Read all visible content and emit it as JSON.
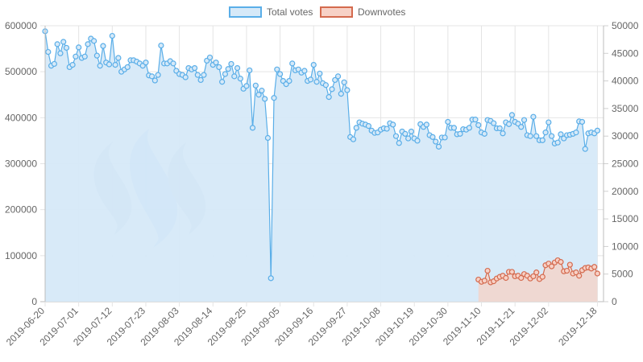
{
  "legend": [
    {
      "label": "Total votes",
      "fill": "#d6e9f8",
      "stroke": "#5aaee8"
    },
    {
      "label": "Downvotes",
      "fill": "#f7d1c6",
      "stroke": "#d46a4e"
    }
  ],
  "chart_data": {
    "type": "line",
    "title": "",
    "x_start": "2019-06-20",
    "x_end": "2019-12-20",
    "x_ticks": [
      "2019-06-20",
      "2019-07-01",
      "2019-07-12",
      "2019-07-23",
      "2019-08-03",
      "2019-08-14",
      "2019-08-25",
      "2019-09-05",
      "2019-09-16",
      "2019-09-27",
      "2019-10-08",
      "2019-10-19",
      "2019-10-30",
      "2019-11-10",
      "2019-11-21",
      "2019-12-02",
      "2019-12-18"
    ],
    "y_left": {
      "min": 0,
      "max": 600000,
      "ticks": [
        0,
        100000,
        200000,
        300000,
        400000,
        500000,
        600000
      ]
    },
    "y_right": {
      "min": 0,
      "max": 50000,
      "ticks": [
        0,
        5000,
        10000,
        15000,
        20000,
        25000,
        30000,
        35000,
        40000,
        45000,
        50000
      ]
    },
    "grid": true,
    "legend_position": "top",
    "series": [
      {
        "name": "Total votes",
        "axis": "left",
        "color": "#5aaee8",
        "fill": "#d6e9f8",
        "points": [
          [
            "2019-06-20",
            588000
          ],
          [
            "2019-06-21",
            543000
          ],
          [
            "2019-06-22",
            513000
          ],
          [
            "2019-06-23",
            517000
          ],
          [
            "2019-06-24",
            560000
          ],
          [
            "2019-06-25",
            540000
          ],
          [
            "2019-06-26",
            565000
          ],
          [
            "2019-06-27",
            552000
          ],
          [
            "2019-06-28",
            510000
          ],
          [
            "2019-06-29",
            515000
          ],
          [
            "2019-06-30",
            533000
          ],
          [
            "2019-07-01",
            553000
          ],
          [
            "2019-07-02",
            530000
          ],
          [
            "2019-07-03",
            533000
          ],
          [
            "2019-07-04",
            560000
          ],
          [
            "2019-07-05",
            572000
          ],
          [
            "2019-07-06",
            567000
          ],
          [
            "2019-07-07",
            535000
          ],
          [
            "2019-07-08",
            513000
          ],
          [
            "2019-07-09",
            556000
          ],
          [
            "2019-07-10",
            520000
          ],
          [
            "2019-07-11",
            516000
          ],
          [
            "2019-07-12",
            578000
          ],
          [
            "2019-07-13",
            515000
          ],
          [
            "2019-07-14",
            530000
          ],
          [
            "2019-07-15",
            500000
          ],
          [
            "2019-07-16",
            505000
          ],
          [
            "2019-07-17",
            510000
          ],
          [
            "2019-07-18",
            525000
          ],
          [
            "2019-07-19",
            525000
          ],
          [
            "2019-07-20",
            522000
          ],
          [
            "2019-07-21",
            518000
          ],
          [
            "2019-07-22",
            513000
          ],
          [
            "2019-07-23",
            520000
          ],
          [
            "2019-07-24",
            492000
          ],
          [
            "2019-07-25",
            490000
          ],
          [
            "2019-07-26",
            481000
          ],
          [
            "2019-07-27",
            493000
          ],
          [
            "2019-07-28",
            557000
          ],
          [
            "2019-07-29",
            518000
          ],
          [
            "2019-07-30",
            518000
          ],
          [
            "2019-07-31",
            523000
          ],
          [
            "2019-08-01",
            518000
          ],
          [
            "2019-08-02",
            502000
          ],
          [
            "2019-08-03",
            495000
          ],
          [
            "2019-08-04",
            493000
          ],
          [
            "2019-08-05",
            488000
          ],
          [
            "2019-08-06",
            508000
          ],
          [
            "2019-08-07",
            505000
          ],
          [
            "2019-08-08",
            508000
          ],
          [
            "2019-08-09",
            493000
          ],
          [
            "2019-08-10",
            482000
          ],
          [
            "2019-08-11",
            493000
          ],
          [
            "2019-08-12",
            524000
          ],
          [
            "2019-08-13",
            531000
          ],
          [
            "2019-08-14",
            515000
          ],
          [
            "2019-08-15",
            520000
          ],
          [
            "2019-08-16",
            510000
          ],
          [
            "2019-08-17",
            478000
          ],
          [
            "2019-08-18",
            495000
          ],
          [
            "2019-08-19",
            506000
          ],
          [
            "2019-08-20",
            517000
          ],
          [
            "2019-08-21",
            490000
          ],
          [
            "2019-08-22",
            508000
          ],
          [
            "2019-08-23",
            485000
          ],
          [
            "2019-08-24",
            463000
          ],
          [
            "2019-08-25",
            469000
          ],
          [
            "2019-08-26",
            503000
          ],
          [
            "2019-08-27",
            378000
          ],
          [
            "2019-08-28",
            470000
          ],
          [
            "2019-08-29",
            450000
          ],
          [
            "2019-08-30",
            459000
          ],
          [
            "2019-08-31",
            441000
          ],
          [
            "2019-09-01",
            356000
          ],
          [
            "2019-09-02",
            51000
          ],
          [
            "2019-09-03",
            443000
          ],
          [
            "2019-09-04",
            505000
          ],
          [
            "2019-09-05",
            495000
          ],
          [
            "2019-09-06",
            480000
          ],
          [
            "2019-09-07",
            473000
          ],
          [
            "2019-09-08",
            480000
          ],
          [
            "2019-09-09",
            518000
          ],
          [
            "2019-09-10",
            503000
          ],
          [
            "2019-09-11",
            505000
          ],
          [
            "2019-09-12",
            498000
          ],
          [
            "2019-09-13",
            502000
          ],
          [
            "2019-09-14",
            480000
          ],
          [
            "2019-09-15",
            483000
          ],
          [
            "2019-09-16",
            515000
          ],
          [
            "2019-09-17",
            478000
          ],
          [
            "2019-09-18",
            496000
          ],
          [
            "2019-09-19",
            475000
          ],
          [
            "2019-09-20",
            471000
          ],
          [
            "2019-09-21",
            445000
          ],
          [
            "2019-09-22",
            462000
          ],
          [
            "2019-09-23",
            482000
          ],
          [
            "2019-09-24",
            490000
          ],
          [
            "2019-09-25",
            452000
          ],
          [
            "2019-09-26",
            477000
          ],
          [
            "2019-09-27",
            460000
          ],
          [
            "2019-09-28",
            358000
          ],
          [
            "2019-09-29",
            353000
          ],
          [
            "2019-09-30",
            378000
          ],
          [
            "2019-10-01",
            390000
          ],
          [
            "2019-10-02",
            387000
          ],
          [
            "2019-10-03",
            385000
          ],
          [
            "2019-10-04",
            382000
          ],
          [
            "2019-10-05",
            372000
          ],
          [
            "2019-10-06",
            367000
          ],
          [
            "2019-10-07",
            368000
          ],
          [
            "2019-10-08",
            374000
          ],
          [
            "2019-10-09",
            377000
          ],
          [
            "2019-10-10",
            376000
          ],
          [
            "2019-10-11",
            388000
          ],
          [
            "2019-10-12",
            385000
          ],
          [
            "2019-10-13",
            360000
          ],
          [
            "2019-10-14",
            345000
          ],
          [
            "2019-10-15",
            370000
          ],
          [
            "2019-10-16",
            365000
          ],
          [
            "2019-10-17",
            355000
          ],
          [
            "2019-10-18",
            370000
          ],
          [
            "2019-10-19",
            355000
          ],
          [
            "2019-10-20",
            350000
          ],
          [
            "2019-10-21",
            386000
          ],
          [
            "2019-10-22",
            380000
          ],
          [
            "2019-10-23",
            385000
          ],
          [
            "2019-10-24",
            362000
          ],
          [
            "2019-10-25",
            358000
          ],
          [
            "2019-10-26",
            348000
          ],
          [
            "2019-10-27",
            337000
          ],
          [
            "2019-10-28",
            357000
          ],
          [
            "2019-10-29",
            357000
          ],
          [
            "2019-10-30",
            391000
          ],
          [
            "2019-10-31",
            378000
          ],
          [
            "2019-11-01",
            378000
          ],
          [
            "2019-11-02",
            364000
          ],
          [
            "2019-11-03",
            365000
          ],
          [
            "2019-11-04",
            375000
          ],
          [
            "2019-11-05",
            374000
          ],
          [
            "2019-11-06",
            378000
          ],
          [
            "2019-11-07",
            396000
          ],
          [
            "2019-11-08",
            396000
          ],
          [
            "2019-11-09",
            384000
          ],
          [
            "2019-11-10",
            368000
          ],
          [
            "2019-11-11",
            365000
          ],
          [
            "2019-11-12",
            395000
          ],
          [
            "2019-11-13",
            393000
          ],
          [
            "2019-11-14",
            388000
          ],
          [
            "2019-11-15",
            377000
          ],
          [
            "2019-11-16",
            377000
          ],
          [
            "2019-11-17",
            366000
          ],
          [
            "2019-11-18",
            390000
          ],
          [
            "2019-11-19",
            386000
          ],
          [
            "2019-11-20",
            406000
          ],
          [
            "2019-11-21",
            391000
          ],
          [
            "2019-11-22",
            387000
          ],
          [
            "2019-11-23",
            380000
          ],
          [
            "2019-11-24",
            395000
          ],
          [
            "2019-11-25",
            362000
          ],
          [
            "2019-11-26",
            360000
          ],
          [
            "2019-11-27",
            402000
          ],
          [
            "2019-11-28",
            360000
          ],
          [
            "2019-11-29",
            351000
          ],
          [
            "2019-11-30",
            351000
          ],
          [
            "2019-12-01",
            368000
          ],
          [
            "2019-12-02",
            390000
          ],
          [
            "2019-12-03",
            360000
          ],
          [
            "2019-12-04",
            344000
          ],
          [
            "2019-12-05",
            346000
          ],
          [
            "2019-12-06",
            364000
          ],
          [
            "2019-12-07",
            355000
          ],
          [
            "2019-12-08",
            362000
          ],
          [
            "2019-12-09",
            363000
          ],
          [
            "2019-12-10",
            365000
          ],
          [
            "2019-12-11",
            368000
          ],
          [
            "2019-12-12",
            392000
          ],
          [
            "2019-12-13",
            391000
          ],
          [
            "2019-12-14",
            332000
          ],
          [
            "2019-12-15",
            366000
          ],
          [
            "2019-12-16",
            368000
          ],
          [
            "2019-12-17",
            366000
          ],
          [
            "2019-12-18",
            372000
          ]
        ]
      },
      {
        "name": "Downvotes",
        "axis": "right",
        "color": "#d46a4e",
        "fill": "#f7d1c6",
        "points": [
          [
            "2019-11-09",
            4000
          ],
          [
            "2019-11-10",
            3600
          ],
          [
            "2019-11-11",
            3800
          ],
          [
            "2019-11-12",
            5600
          ],
          [
            "2019-11-13",
            3500
          ],
          [
            "2019-11-14",
            3700
          ],
          [
            "2019-11-15",
            4200
          ],
          [
            "2019-11-16",
            4500
          ],
          [
            "2019-11-17",
            4700
          ],
          [
            "2019-11-18",
            4300
          ],
          [
            "2019-11-19",
            5400
          ],
          [
            "2019-11-20",
            5400
          ],
          [
            "2019-11-21",
            4600
          ],
          [
            "2019-11-22",
            4700
          ],
          [
            "2019-11-23",
            4300
          ],
          [
            "2019-11-24",
            5000
          ],
          [
            "2019-11-25",
            4700
          ],
          [
            "2019-11-26",
            4200
          ],
          [
            "2019-11-27",
            4600
          ],
          [
            "2019-11-28",
            5300
          ],
          [
            "2019-11-29",
            4100
          ],
          [
            "2019-11-30",
            4500
          ],
          [
            "2019-12-01",
            6600
          ],
          [
            "2019-12-02",
            6900
          ],
          [
            "2019-12-03",
            6400
          ],
          [
            "2019-12-04",
            7100
          ],
          [
            "2019-12-05",
            7500
          ],
          [
            "2019-12-06",
            7200
          ],
          [
            "2019-12-07",
            5500
          ],
          [
            "2019-12-08",
            5600
          ],
          [
            "2019-12-09",
            6700
          ],
          [
            "2019-12-10",
            5100
          ],
          [
            "2019-12-11",
            5300
          ],
          [
            "2019-12-12",
            4700
          ],
          [
            "2019-12-13",
            5700
          ],
          [
            "2019-12-14",
            6100
          ],
          [
            "2019-12-15",
            6200
          ],
          [
            "2019-12-16",
            6000
          ],
          [
            "2019-12-17",
            6300
          ],
          [
            "2019-12-18",
            5100
          ]
        ]
      }
    ]
  }
}
